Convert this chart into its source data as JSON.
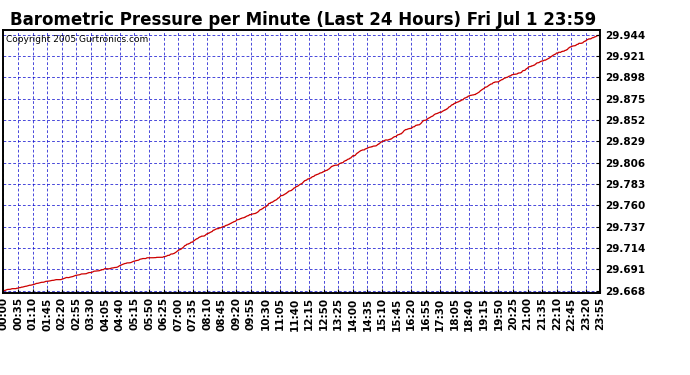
{
  "title": "Barometric Pressure per Minute (Last 24 Hours) Fri Jul 1 23:59",
  "copyright": "Copyright 2005 Gurtronics.com",
  "bg_color": "#ffffff",
  "plot_bg_color": "#ffffff",
  "line_color": "#cc0000",
  "grid_color": "#0000cc",
  "border_color": "#000000",
  "title_color": "#000000",
  "ymin": 29.668,
  "ymax": 29.944,
  "ytick_start": 29.668,
  "ytick_step": 0.023,
  "ytick_count": 12,
  "x_labels": [
    "00:00",
    "00:35",
    "01:10",
    "01:45",
    "02:20",
    "02:55",
    "03:30",
    "04:05",
    "04:40",
    "05:15",
    "05:50",
    "06:25",
    "07:00",
    "07:35",
    "08:10",
    "08:45",
    "09:20",
    "09:55",
    "10:30",
    "11:05",
    "11:40",
    "12:15",
    "12:50",
    "13:25",
    "14:00",
    "14:35",
    "15:10",
    "15:45",
    "16:20",
    "16:55",
    "17:30",
    "18:05",
    "18:40",
    "19:15",
    "19:50",
    "20:25",
    "21:00",
    "21:35",
    "22:10",
    "22:45",
    "23:20",
    "23:55"
  ],
  "title_fontsize": 12,
  "tick_fontsize": 7.5,
  "copyright_fontsize": 6.5,
  "figwidth": 6.9,
  "figheight": 3.75,
  "dpi": 100
}
